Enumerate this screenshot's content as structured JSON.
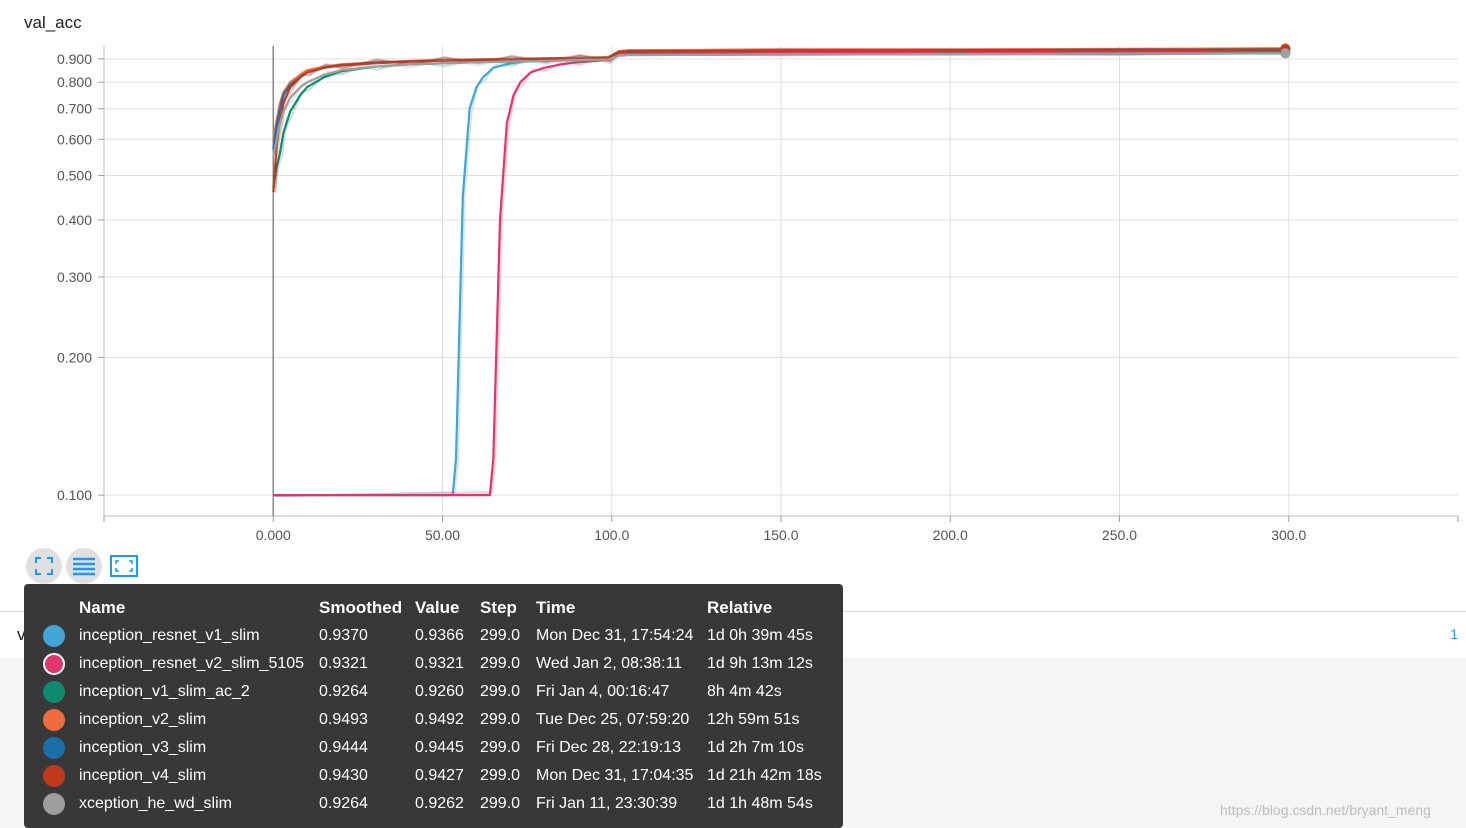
{
  "chart_title": "val_acc",
  "lower_card": {
    "title": "val_loss",
    "count": "1"
  },
  "toolbar": {
    "expand_icon": "fullscreen-icon",
    "list_icon": "data-table-icon",
    "fit_icon": "fit-domain-icon"
  },
  "tooltip": {
    "headers": {
      "name": "Name",
      "smoothed": "Smoothed",
      "value": "Value",
      "step": "Step",
      "time": "Time",
      "relative": "Relative"
    },
    "rows": [
      {
        "name": "inception_resnet_v1_slim",
        "smoothed": "0.9370",
        "value": "0.9366",
        "step": "299.0",
        "time": "Mon Dec 31, 17:54:24",
        "relative": "1d 0h 39m 45s",
        "color": "#42a5d5"
      },
      {
        "name": "inception_resnet_v2_slim_5105",
        "smoothed": "0.9321",
        "value": "0.9321",
        "step": "299.0",
        "time": "Wed Jan 2, 08:38:11",
        "relative": "1d 9h 13m 12s",
        "color": "#e0356e"
      },
      {
        "name": "inception_v1_slim_ac_2",
        "smoothed": "0.9264",
        "value": "0.9260",
        "step": "299.0",
        "time": "Fri Jan 4, 00:16:47",
        "relative": "8h 4m 42s",
        "color": "#0e8a6e"
      },
      {
        "name": "inception_v2_slim",
        "smoothed": "0.9493",
        "value": "0.9492",
        "step": "299.0",
        "time": "Tue Dec 25, 07:59:20",
        "relative": "12h 59m 51s",
        "color": "#ee6b3b"
      },
      {
        "name": "inception_v3_slim",
        "smoothed": "0.9444",
        "value": "0.9445",
        "step": "299.0",
        "time": "Fri Dec 28, 22:19:13",
        "relative": "1d 2h 7m 10s",
        "color": "#1b6fa8"
      },
      {
        "name": "inception_v4_slim",
        "smoothed": "0.9430",
        "value": "0.9427",
        "step": "299.0",
        "time": "Mon Dec 31, 17:04:35",
        "relative": "1d 21h 42m 18s",
        "color": "#c0391b"
      },
      {
        "name": "xception_he_wd_slim",
        "smoothed": "0.9264",
        "value": "0.9262",
        "step": "299.0",
        "time": "Fri Jan 11, 23:30:39",
        "relative": "1d 1h 48m 54s",
        "color": "#9e9e9e"
      }
    ]
  },
  "watermark": "https://blog.csdn.net/bryant_meng",
  "chart_data": {
    "type": "line",
    "title": "val_acc",
    "xlabel": "",
    "ylabel": "",
    "xlim": [
      -50,
      350
    ],
    "ylim": [
      0.09,
      0.96
    ],
    "y_scale": "log",
    "grid": true,
    "legend": "none",
    "x_ticks": [
      0,
      50,
      100,
      150,
      200,
      250,
      300
    ],
    "x_tick_labels": [
      "0.000",
      "50.00",
      "100.0",
      "150.0",
      "200.0",
      "250.0",
      "300.0"
    ],
    "y_ticks": [
      0.1,
      0.2,
      0.3,
      0.4,
      0.5,
      0.6,
      0.7,
      0.8,
      0.9
    ],
    "y_tick_labels": [
      "0.100",
      "0.200",
      "0.300",
      "0.400",
      "0.500",
      "0.600",
      "0.700",
      "0.800",
      "0.900"
    ],
    "series": [
      {
        "name": "inception_resnet_v1_slim",
        "color": "#42a5d5",
        "x": [
          0,
          53,
          54,
          56,
          58,
          60,
          62,
          65,
          70,
          75,
          80,
          90,
          99,
          102,
          105,
          150,
          200,
          250,
          299
        ],
        "y": [
          0.1,
          0.1,
          0.12,
          0.45,
          0.7,
          0.78,
          0.82,
          0.86,
          0.88,
          0.89,
          0.895,
          0.9,
          0.905,
          0.925,
          0.93,
          0.932,
          0.933,
          0.934,
          0.937
        ]
      },
      {
        "name": "inception_resnet_v2_slim_5105",
        "color": "#e0356e",
        "x": [
          0,
          64,
          65,
          67,
          69,
          71,
          73,
          76,
          80,
          85,
          90,
          95,
          99,
          102,
          105,
          150,
          200,
          250,
          299
        ],
        "y": [
          0.1,
          0.1,
          0.12,
          0.4,
          0.65,
          0.75,
          0.8,
          0.84,
          0.86,
          0.875,
          0.885,
          0.89,
          0.895,
          0.92,
          0.925,
          0.928,
          0.929,
          0.93,
          0.932
        ]
      },
      {
        "name": "inception_v1_slim_ac_2",
        "color": "#0e8a6e",
        "x": [
          0,
          1,
          2,
          3,
          5,
          8,
          10,
          15,
          20,
          25,
          30,
          40,
          50,
          60,
          70,
          80,
          90,
          99,
          102,
          105,
          150,
          200,
          250,
          299
        ],
        "y": [
          0.47,
          0.52,
          0.56,
          0.62,
          0.69,
          0.75,
          0.78,
          0.82,
          0.845,
          0.855,
          0.865,
          0.875,
          0.88,
          0.885,
          0.888,
          0.89,
          0.895,
          0.9,
          0.915,
          0.918,
          0.92,
          0.921,
          0.922,
          0.926
        ]
      },
      {
        "name": "inception_v2_slim",
        "color": "#ee6b3b",
        "x": [
          0,
          1,
          2,
          3,
          5,
          8,
          10,
          15,
          20,
          30,
          40,
          50,
          60,
          70,
          80,
          90,
          99,
          102,
          105,
          150,
          200,
          250,
          299
        ],
        "y": [
          0.6,
          0.66,
          0.72,
          0.76,
          0.8,
          0.83,
          0.85,
          0.865,
          0.875,
          0.885,
          0.89,
          0.895,
          0.898,
          0.9,
          0.903,
          0.905,
          0.908,
          0.935,
          0.94,
          0.943,
          0.944,
          0.945,
          0.949
        ]
      },
      {
        "name": "inception_v3_slim",
        "color": "#1b6fa8",
        "x": [
          0,
          1,
          2,
          3,
          5,
          8,
          10,
          15,
          20,
          30,
          40,
          50,
          60,
          70,
          80,
          90,
          99,
          102,
          105,
          150,
          200,
          250,
          299
        ],
        "y": [
          0.57,
          0.64,
          0.7,
          0.75,
          0.79,
          0.82,
          0.84,
          0.86,
          0.872,
          0.882,
          0.888,
          0.892,
          0.895,
          0.898,
          0.9,
          0.902,
          0.905,
          0.93,
          0.935,
          0.938,
          0.94,
          0.941,
          0.944
        ]
      },
      {
        "name": "inception_v4_slim",
        "color": "#c0391b",
        "x": [
          0,
          1,
          2,
          3,
          5,
          8,
          10,
          15,
          20,
          30,
          40,
          50,
          60,
          70,
          80,
          90,
          99,
          102,
          105,
          150,
          200,
          250,
          299
        ],
        "y": [
          0.46,
          0.58,
          0.66,
          0.72,
          0.78,
          0.82,
          0.84,
          0.86,
          0.87,
          0.88,
          0.887,
          0.891,
          0.894,
          0.897,
          0.899,
          0.901,
          0.904,
          0.93,
          0.935,
          0.937,
          0.939,
          0.94,
          0.943
        ]
      },
      {
        "name": "xception_he_wd_slim",
        "color": "#9e9e9e",
        "x": [
          0,
          1,
          2,
          3,
          5,
          8,
          10,
          15,
          20,
          30,
          40,
          50,
          60,
          70,
          80,
          90,
          99,
          102,
          105,
          150,
          200,
          250,
          299
        ],
        "y": [
          0.55,
          0.6,
          0.65,
          0.69,
          0.74,
          0.78,
          0.8,
          0.83,
          0.85,
          0.865,
          0.875,
          0.88,
          0.885,
          0.888,
          0.891,
          0.894,
          0.897,
          0.915,
          0.918,
          0.92,
          0.922,
          0.923,
          0.926
        ]
      }
    ]
  }
}
